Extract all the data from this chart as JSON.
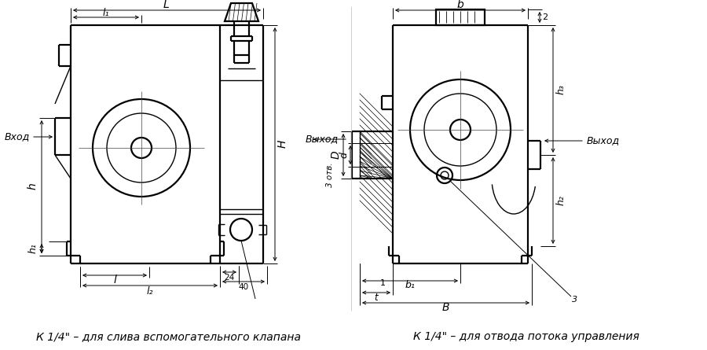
{
  "bg_color": "#ffffff",
  "line_color": "#000000",
  "title_left": "К 1/4\" – для слива вспомогательного клапана",
  "title_right": "К 1/4\" – для отвода потока управления",
  "label_vhod": "Вход",
  "label_vyhod_left": "Выход",
  "label_vyhod_right": "Выход",
  "fig_width": 9.0,
  "fig_height": 4.45,
  "dpi": 100
}
